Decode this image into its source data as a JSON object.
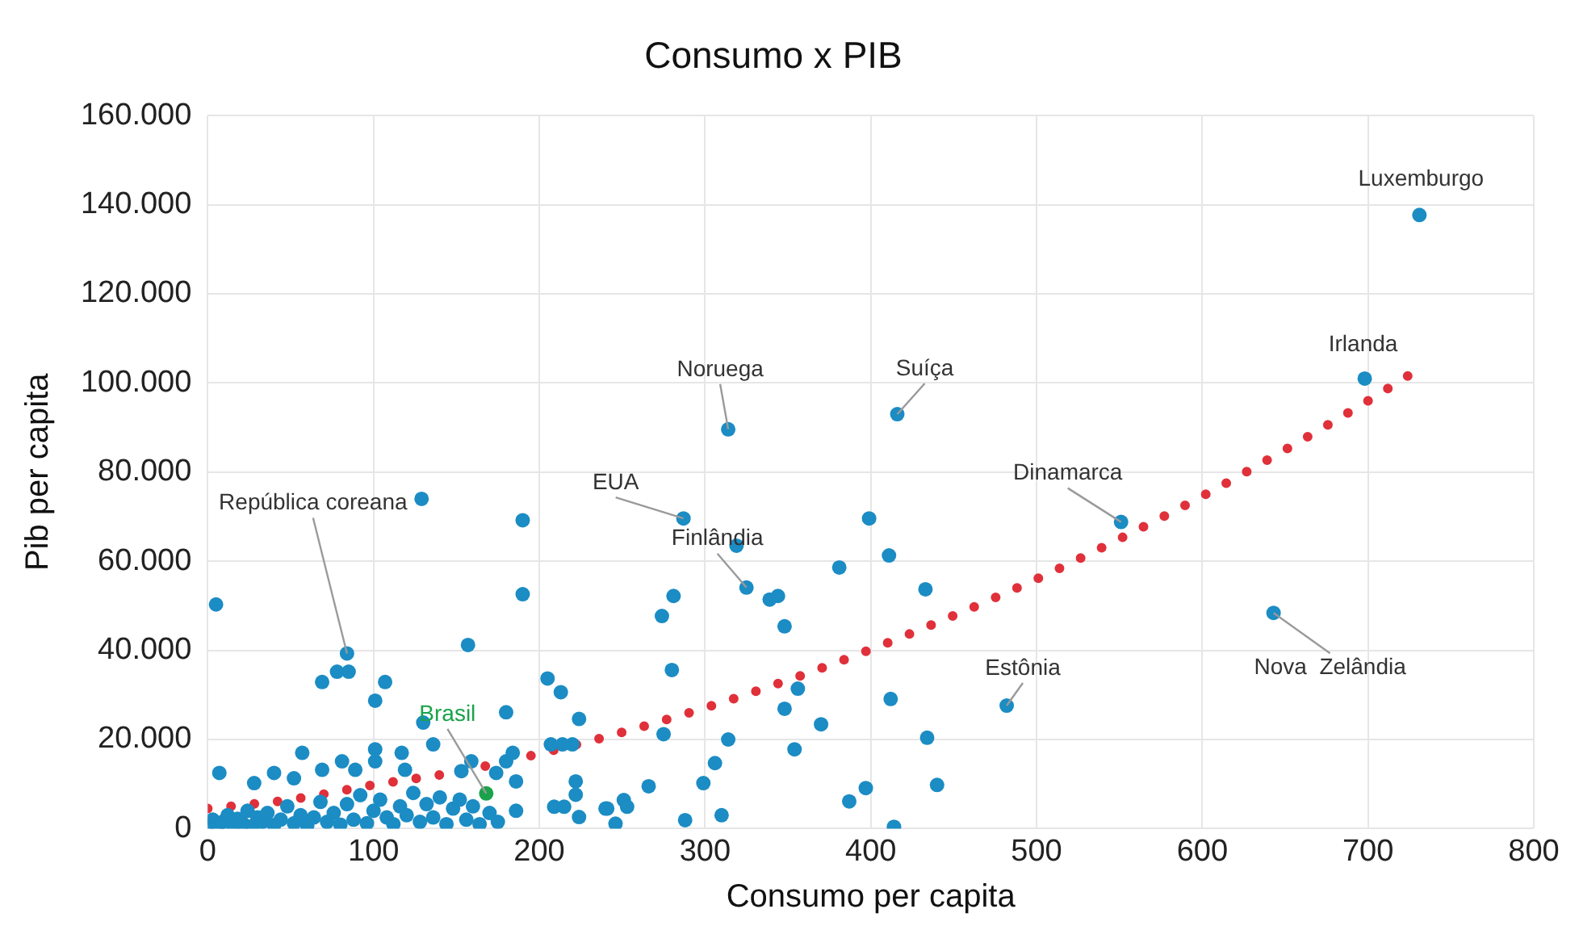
{
  "chart_data": {
    "type": "scatter",
    "title": "Consumo x PIB",
    "xlabel": "Consumo per capita",
    "ylabel": "Pib per capita",
    "xlim": [
      0,
      800
    ],
    "xticks": [
      0,
      100,
      200,
      300,
      400,
      500,
      600,
      700,
      800
    ],
    "ylim": [
      0,
      160000
    ],
    "yticks": [
      {
        "value": 0,
        "label": "0"
      },
      {
        "value": 20000,
        "label": "20.000"
      },
      {
        "value": 40000,
        "label": "40.000"
      },
      {
        "value": 60000,
        "label": "60.000"
      },
      {
        "value": 80000,
        "label": "80.000"
      },
      {
        "value": 100000,
        "label": "100.000"
      },
      {
        "value": 120000,
        "label": "120.000"
      },
      {
        "value": 140000,
        "label": "140.000"
      },
      {
        "value": 160000,
        "label": "160.000"
      }
    ],
    "grid": true,
    "legend": false,
    "series": [
      {
        "marker": "circle",
        "color": "#1b8cc4",
        "x": [
          5,
          84,
          69,
          78,
          85,
          107,
          101,
          130,
          180,
          157,
          190,
          190,
          205,
          213,
          224,
          129,
          168,
          7,
          28,
          40,
          52,
          57,
          69,
          81,
          89,
          101,
          101,
          117,
          119,
          136,
          153,
          159,
          174,
          180,
          186,
          184,
          207,
          214,
          220,
          222,
          222,
          240,
          224,
          209,
          215,
          0,
          3,
          6,
          9,
          12,
          15,
          18,
          21,
          24,
          27,
          30,
          33,
          36,
          40,
          44,
          48,
          52,
          56,
          60,
          64,
          68,
          72,
          76,
          80,
          84,
          88,
          92,
          96,
          100,
          104,
          108,
          112,
          116,
          120,
          124,
          128,
          132,
          136,
          140,
          144,
          148,
          152,
          156,
          160,
          164,
          170,
          175,
          186,
          314,
          416,
          287,
          325,
          319,
          281,
          274,
          339,
          344,
          348,
          280,
          399,
          411,
          381,
          433,
          356,
          348,
          370,
          354,
          412,
          434,
          440,
          414,
          397,
          387,
          314,
          306,
          299,
          275,
          266,
          251,
          253,
          241,
          246,
          288,
          310,
          482,
          551,
          643,
          698,
          731
        ],
        "values": [
          50300,
          39300,
          32900,
          35200,
          35200,
          32900,
          28700,
          23800,
          26100,
          41200,
          69200,
          52600,
          33700,
          30600,
          24600,
          74000,
          7900,
          12500,
          10200,
          12500,
          11300,
          17000,
          13200,
          15100,
          13200,
          17800,
          15100,
          17000,
          13200,
          18900,
          12900,
          15100,
          12500,
          15100,
          10600,
          17000,
          18900,
          18900,
          18900,
          10600,
          7600,
          4500,
          2600,
          4900,
          4900,
          1000,
          2000,
          500,
          1500,
          3000,
          800,
          2200,
          1200,
          4000,
          600,
          2500,
          1500,
          3500,
          800,
          2000,
          5000,
          1200,
          3000,
          700,
          2500,
          6000,
          1500,
          3500,
          900,
          5500,
          2000,
          7500,
          1200,
          4000,
          6500,
          2500,
          1000,
          5000,
          3000,
          8000,
          1500,
          5500,
          2500,
          7000,
          1000,
          4500,
          6500,
          2000,
          5000,
          1000,
          3500,
          1500,
          4000,
          89600,
          93000,
          69600,
          54100,
          63500,
          52200,
          47700,
          51400,
          52200,
          45400,
          35600,
          69600,
          61300,
          58600,
          53700,
          31400,
          26900,
          23400,
          17800,
          29100,
          20400,
          9800,
          400,
          9100,
          6100,
          20000,
          14700,
          10200,
          21200,
          9500,
          6400,
          4900,
          4500,
          1100,
          1900,
          3000,
          27600,
          68800,
          48400,
          101000,
          137700
        ],
        "colors": [
          "#1b8cc4",
          "#1b8cc4",
          "#1b8cc4",
          "#1b8cc4",
          "#1b8cc4",
          "#1b8cc4",
          "#1b8cc4",
          "#1b8cc4",
          "#1b8cc4",
          "#1b8cc4",
          "#1b8cc4",
          "#1b8cc4",
          "#1b8cc4",
          "#1b8cc4",
          "#1b8cc4",
          "#1b8cc4",
          "#1aa34a",
          "#1b8cc4",
          "#1b8cc4",
          "#1b8cc4",
          "#1b8cc4",
          "#1b8cc4",
          "#1b8cc4",
          "#1b8cc4",
          "#1b8cc4",
          "#1b8cc4",
          "#1b8cc4",
          "#1b8cc4",
          "#1b8cc4",
          "#1b8cc4",
          "#1b8cc4",
          "#1b8cc4",
          "#1b8cc4",
          "#1b8cc4",
          "#1b8cc4",
          "#1b8cc4",
          "#1b8cc4",
          "#1b8cc4",
          "#1b8cc4",
          "#1b8cc4",
          "#1b8cc4",
          "#1b8cc4",
          "#1b8cc4",
          "#1b8cc4",
          "#1b8cc4",
          "#1b8cc4",
          "#1b8cc4",
          "#1b8cc4",
          "#1b8cc4",
          "#1b8cc4",
          "#1b8cc4",
          "#1b8cc4",
          "#1b8cc4",
          "#1b8cc4",
          "#1b8cc4",
          "#1b8cc4",
          "#1b8cc4",
          "#1b8cc4",
          "#1b8cc4",
          "#1b8cc4",
          "#1b8cc4",
          "#1b8cc4",
          "#1b8cc4",
          "#1b8cc4",
          "#1b8cc4",
          "#1b8cc4",
          "#1b8cc4",
          "#1b8cc4",
          "#1b8cc4",
          "#1b8cc4",
          "#1b8cc4",
          "#1b8cc4",
          "#1b8cc4",
          "#1b8cc4",
          "#1b8cc4",
          "#1b8cc4",
          "#1b8cc4",
          "#1b8cc4",
          "#1b8cc4",
          "#1b8cc4",
          "#1b8cc4",
          "#1b8cc4",
          "#1b8cc4",
          "#1b8cc4",
          "#1b8cc4",
          "#1b8cc4",
          "#1b8cc4",
          "#1b8cc4",
          "#1b8cc4",
          "#1b8cc4",
          "#1b8cc4",
          "#1b8cc4",
          "#1b8cc4",
          "#1b8cc4",
          "#1b8cc4",
          "#1b8cc4",
          "#1b8cc4",
          "#1b8cc4",
          "#1b8cc4",
          "#1b8cc4",
          "#1b8cc4",
          "#1b8cc4",
          "#1b8cc4",
          "#1b8cc4",
          "#1b8cc4",
          "#1b8cc4",
          "#1b8cc4",
          "#1b8cc4",
          "#1b8cc4",
          "#1b8cc4",
          "#1b8cc4",
          "#1b8cc4",
          "#1b8cc4",
          "#1b8cc4",
          "#1b8cc4",
          "#1b8cc4",
          "#1b8cc4",
          "#1b8cc4",
          "#1b8cc4",
          "#1b8cc4",
          "#1b8cc4",
          "#1b8cc4",
          "#1b8cc4",
          "#1b8cc4",
          "#1b8cc4",
          "#1b8cc4",
          "#1b8cc4",
          "#1b8cc4",
          "#1b8cc4",
          "#1b8cc4",
          "#1b8cc4",
          "#1b8cc4",
          "#1b8cc4",
          "#1b8cc4"
        ]
      },
      {
        "type": "line",
        "marker": "none",
        "line_style": "dotted",
        "color": "#e0303a",
        "x": [
          0,
          50,
          100,
          150,
          200,
          250,
          300,
          350,
          400,
          450,
          500,
          550,
          600,
          650,
          700,
          730
        ],
        "values": [
          4500,
          6500,
          9800,
          12700,
          16800,
          21600,
          27100,
          33300,
          40200,
          47800,
          56000,
          65000,
          74600,
          85000,
          96000,
          103000
        ]
      }
    ],
    "annotations": [
      {
        "text": "República coreana",
        "x": 84,
        "y": 39300
      },
      {
        "text": "Brasil",
        "x": 168,
        "y": 7900
      },
      {
        "text": "EUA",
        "x": 287,
        "y": 69600
      },
      {
        "text": "Finlândia",
        "x": 325,
        "y": 54100
      },
      {
        "text": "Noruega",
        "x": 314,
        "y": 89600
      },
      {
        "text": "Suíça",
        "x": 416,
        "y": 93000
      },
      {
        "text": "Dinamarca",
        "x": 551,
        "y": 68800
      },
      {
        "text": "Estônia",
        "x": 482,
        "y": 27600
      },
      {
        "text": "Nova  Zelândia",
        "x": 643,
        "y": 48400
      },
      {
        "text": "Irlanda",
        "x": 698,
        "y": 101000
      },
      {
        "text": "Luxemburgo",
        "x": 731,
        "y": 137700
      }
    ]
  }
}
